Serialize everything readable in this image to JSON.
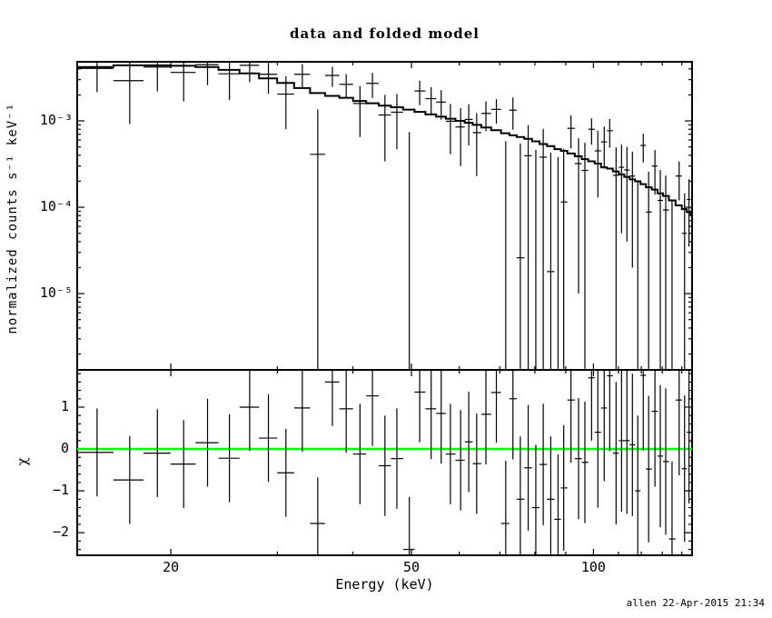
{
  "window": {
    "background": "#ffffff",
    "footer_text": "allen 22-Apr-2015 21:34"
  },
  "chart_data": {
    "type": "scatter",
    "subtype": "xspec-data-and-folded-model",
    "title": "data and folded model",
    "xlabel": "Energy (keV)",
    "xscale": "log",
    "xlim": [
      14.0,
      145.6
    ],
    "xticks_major": [
      20,
      50,
      100
    ],
    "xtick_labels": [
      "20",
      "50",
      "100"
    ],
    "xticks_minor": [
      30,
      40,
      60,
      70,
      80,
      90,
      110,
      120,
      130,
      140
    ],
    "grid": false,
    "legend": null,
    "colors": {
      "data": "#000000",
      "model": "#000000",
      "zero_line": "#00ff00",
      "frame": "#000000",
      "background": "#ffffff"
    },
    "panels": [
      {
        "name": "spectrum",
        "ylabel": "normalized counts s⁻¹ keV⁻¹",
        "yscale": "log",
        "ylim": [
          1.31e-06,
          0.00483
        ],
        "yticks_major": [
          0.001,
          0.0001,
          1e-05
        ],
        "ytick_labels": [
          "10⁻³",
          "10⁻⁴",
          "10⁻⁵"
        ]
      },
      {
        "name": "residuals",
        "ylabel": "χ",
        "yscale": "linear",
        "ylim": [
          -2.54,
          1.89
        ],
        "yticks_major": [
          1,
          0,
          -1,
          -2
        ],
        "ytick_labels": [
          "1",
          "0",
          "−1",
          "−2"
        ],
        "yticks_minor_step": 0.2,
        "zero_line": {
          "value": 0,
          "color": "#00ff00"
        }
      }
    ],
    "series": {
      "energy_kev": [
        15.1,
        17.1,
        19.0,
        21.0,
        23.0,
        25.0,
        27.0,
        29.0,
        31.0,
        33.0,
        35.0,
        37.0,
        39.0,
        41.1,
        43.1,
        45.2,
        47.3,
        49.6,
        51.6,
        53.9,
        56.0,
        58.0,
        60.3,
        62.2,
        64.1,
        66.4,
        69.1,
        71.6,
        73.6,
        75.7,
        78.0,
        80.3,
        82.6,
        85.0,
        87.4,
        89.3,
        91.8,
        94.5,
        96.8,
        99.3,
        101.7,
        104.2,
        106.4,
        109.0,
        111.3,
        113.6,
        116.0,
        118.4,
        120.9,
        123.4,
        126.4,
        129.0,
        131.7,
        134.9,
        138.6,
        141.5,
        143.9,
        145.8
      ],
      "data": [
        0.00405,
        0.00292,
        0.0042,
        0.00364,
        0.00448,
        0.00351,
        0.0044,
        0.00346,
        0.00204,
        0.00346,
        0.00041,
        0.00336,
        0.00265,
        0.00159,
        0.00272,
        0.00117,
        0.00126,
        2e-06,
        0.00222,
        0.00181,
        0.00165,
        0.00099,
        0.00085,
        0.00104,
        0.00073,
        0.00122,
        0.00136,
        2e-06,
        0.00133,
        2.6e-05,
        0.000395,
        2e-06,
        0.00038,
        1.8e-05,
        2e-06,
        0.000115,
        0.00082,
        0.00032,
        0.000267,
        0.0008,
        0.00045,
        0.00057,
        0.00077,
        0.000234,
        0.00029,
        0.00027,
        0.00023,
        2e-06,
        0.00052,
        8.8e-05,
        0.0003,
        0.00012,
        9.3e-05,
        2e-06,
        0.00023,
        5e-05,
        0.000123,
        9.7e-05
      ],
      "data_err": [
        0.0019,
        0.002,
        0.002,
        0.00196,
        0.00189,
        0.00176,
        0.0016,
        0.0014,
        0.00124,
        0.00108,
        0.00095,
        0.00088,
        0.00083,
        0.00094,
        0.00088,
        0.00083,
        0.00079,
        0.00074,
        0.0007,
        0.00065,
        0.00062,
        0.00058,
        0.00055,
        0.00052,
        0.0005,
        0.00046,
        0.00043,
        0.00058,
        0.00054,
        0.00052,
        0.0005,
        0.00046,
        0.00043,
        0.00041,
        0.00038,
        0.00036,
        0.00034,
        0.00031,
        0.00029,
        0.00027,
        0.00032,
        0.00029,
        0.00028,
        0.00026,
        0.00024,
        0.00023,
        0.00021,
        0.0002,
        0.00019,
        0.00017,
        0.00016,
        0.00015,
        0.00014,
        0.00012,
        0.00011,
        9.5e-05,
        8.8e-05,
        8.3e-05
      ],
      "model": [
        0.0042,
        0.0044,
        0.0044,
        0.00435,
        0.0042,
        0.0039,
        0.00355,
        0.0031,
        0.00275,
        0.0024,
        0.0021,
        0.00195,
        0.00185,
        0.0017,
        0.0016,
        0.0015,
        0.00144,
        0.00135,
        0.00127,
        0.00119,
        0.00112,
        0.00106,
        0.001,
        0.00095,
        0.0009,
        0.00084,
        0.00078,
        0.00072,
        0.00068,
        0.00065,
        0.00062,
        0.00058,
        0.00054,
        0.00051,
        0.00047,
        0.00045,
        0.00042,
        0.00039,
        0.00036,
        0.00034,
        0.00032,
        0.00029,
        0.00028,
        0.00026,
        0.00024,
        0.000225,
        0.00021,
        0.0002,
        0.000185,
        0.00017,
        0.00016,
        0.000145,
        0.000135,
        0.00012,
        0.000105,
        9.5e-05,
        8.8e-05,
        8.3e-05
      ],
      "chi": [
        -0.08,
        -0.74,
        -0.1,
        -0.36,
        0.15,
        -0.22,
        1.0,
        0.26,
        -0.57,
        0.98,
        -1.78,
        1.6,
        0.96,
        -0.12,
        1.27,
        -0.4,
        -0.23,
        -2.4,
        1.36,
        0.96,
        0.85,
        -0.12,
        -0.27,
        0.17,
        -0.35,
        0.83,
        1.35,
        -1.78,
        1.2,
        -1.2,
        -0.45,
        -1.4,
        -0.37,
        -1.2,
        -1.68,
        -0.93,
        1.17,
        -0.23,
        -0.32,
        1.7,
        0.4,
        0.98,
        1.75,
        -0.1,
        0.2,
        0.2,
        0.1,
        -1.0,
        1.76,
        -0.48,
        0.9,
        -0.17,
        -0.3,
        -2.15,
        1.17,
        -0.47,
        0.4,
        0.17
      ],
      "chi_err": [
        1.05,
        1.05,
        1.05,
        1.05,
        1.05,
        1.05,
        1.05,
        1.05,
        1.05,
        1.05,
        1.1,
        1.05,
        1.05,
        1.2,
        1.2,
        1.2,
        1.2,
        1.25,
        1.2,
        1.2,
        1.2,
        1.2,
        1.2,
        1.2,
        1.2,
        1.2,
        1.2,
        1.5,
        1.45,
        1.5,
        1.5,
        1.5,
        1.45,
        1.5,
        1.55,
        1.5,
        1.5,
        1.45,
        1.45,
        1.5,
        1.8,
        1.75,
        1.8,
        1.7,
        1.7,
        1.75,
        1.7,
        1.8,
        1.8,
        1.75,
        1.8,
        1.7,
        1.75,
        1.85,
        1.8,
        1.75,
        1.7,
        1.75
      ]
    }
  }
}
